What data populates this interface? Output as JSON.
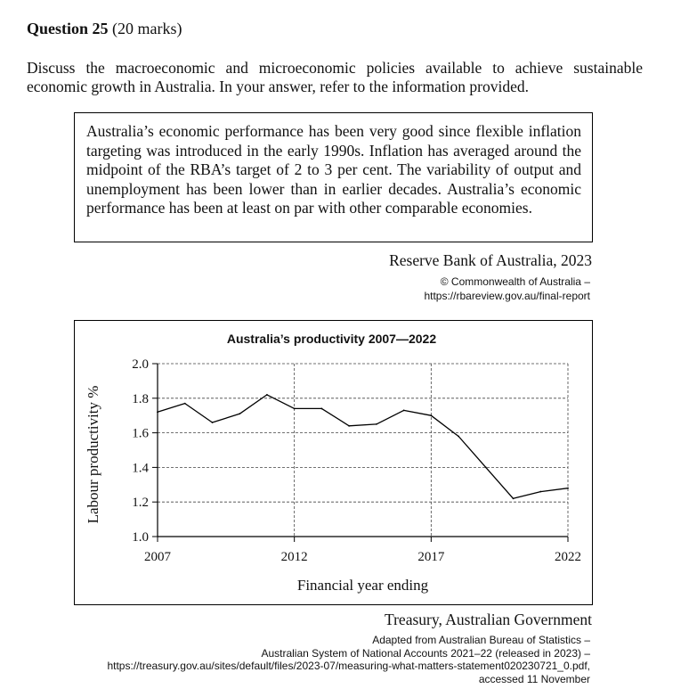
{
  "question": {
    "number_label": "Question 25",
    "marks": "(20 marks)",
    "text": "Discuss the macroeconomic and microeconomic policies available to achieve sustainable economic growth in Australia. In your answer, refer to the information provided."
  },
  "extract": {
    "quote": "Australia’s economic performance has been very good since flexible inflation targeting was introduced in the early 1990s. Inflation has averaged around the midpoint of the RBA’s target of 2 to 3 per cent. The variability of output and unemployment has been lower than in earlier decades. Australia’s economic performance has been at least on par with other comparable economies.",
    "source": "Reserve Bank of Australia, 2023",
    "copyright_line1": "© Commonwealth of Australia –",
    "copyright_line2": "https://rbareview.gov.au/final-report"
  },
  "chart_data": {
    "type": "line",
    "title": "Australia’s productivity 2007—2022",
    "xlabel": "Financial year ending",
    "ylabel": "Labour productivity %",
    "x_ticks": [
      "2007",
      "2012",
      "2017",
      "2022"
    ],
    "y_ticks": [
      "2.0",
      "1.8",
      "1.6",
      "1.4",
      "1.2",
      "1.0"
    ],
    "xlim": [
      2007,
      2022
    ],
    "ylim": [
      1.0,
      2.0
    ],
    "grid": true,
    "series": [
      {
        "x": [
          2007,
          2008,
          2009,
          2010,
          2011,
          2012,
          2013,
          2014,
          2015,
          2016,
          2017,
          2018,
          2019,
          2020,
          2021,
          2022
        ],
        "values": [
          1.72,
          1.77,
          1.66,
          1.71,
          1.82,
          1.74,
          1.74,
          1.64,
          1.65,
          1.73,
          1.7,
          1.58,
          1.4,
          1.22,
          1.26,
          1.28
        ],
        "color": "#000000"
      }
    ]
  },
  "chart_source": {
    "source": "Treasury, Australian Government",
    "line1": "Adapted from Australian Bureau of Statistics –",
    "line2": "Australian System of National Accounts 2021–22 (released in 2023) –",
    "line3": "https://treasury.gov.au/sites/default/files/2023-07/measuring-what-matters-statement020230721_0.pdf,",
    "line4": "accessed 11 November"
  }
}
